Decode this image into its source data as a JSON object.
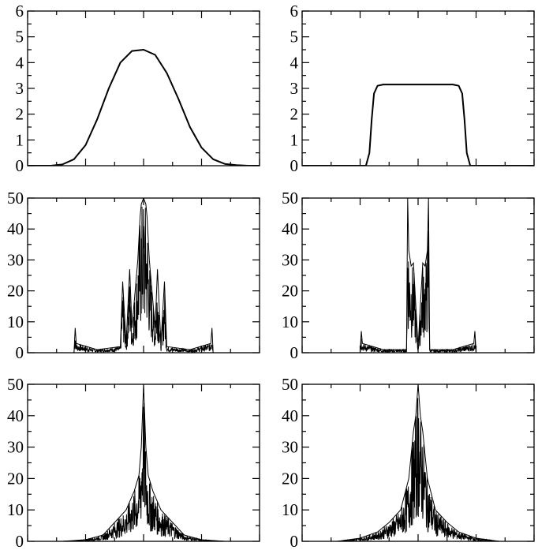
{
  "chart_data": [
    {
      "panel": "top-left",
      "type": "line",
      "ylim": [
        0,
        6
      ],
      "yticks": [
        "0",
        "1",
        "2",
        "3",
        "4",
        "5",
        "6"
      ],
      "xlim": [
        -1,
        1
      ],
      "series": [
        {
          "x": [
            -1,
            -0.9,
            -0.8,
            -0.7,
            -0.6,
            -0.5,
            -0.4,
            -0.3,
            -0.2,
            -0.1,
            0,
            0.1,
            0.2,
            0.3,
            0.4,
            0.5,
            0.6,
            0.7,
            0.8,
            0.9,
            1
          ],
          "values": [
            0,
            0,
            0,
            0.05,
            0.25,
            0.8,
            1.8,
            3.0,
            4.0,
            4.45,
            4.5,
            4.3,
            3.6,
            2.6,
            1.5,
            0.7,
            0.25,
            0.07,
            0.02,
            0,
            0
          ]
        }
      ]
    },
    {
      "panel": "top-right",
      "type": "line",
      "ylim": [
        0,
        6
      ],
      "yticks": [
        "0",
        "1",
        "2",
        "3",
        "4",
        "5",
        "6"
      ],
      "xlim": [
        -1,
        1
      ],
      "series": [
        {
          "x": [
            -1,
            -0.5,
            -0.45,
            -0.42,
            -0.4,
            -0.38,
            -0.35,
            -0.3,
            0,
            0.3,
            0.35,
            0.38,
            0.4,
            0.42,
            0.45,
            0.5,
            1
          ],
          "values": [
            0,
            0,
            0,
            0.5,
            1.8,
            2.8,
            3.1,
            3.15,
            3.15,
            3.15,
            3.1,
            2.8,
            1.8,
            0.5,
            0,
            0,
            0
          ]
        }
      ]
    },
    {
      "panel": "middle-left",
      "type": "line",
      "ylim": [
        0,
        50
      ],
      "yticks": [
        "0",
        "10",
        "20",
        "30",
        "40",
        "50"
      ],
      "xlim": [
        -1,
        1
      ],
      "series": [
        {
          "x": [
            -0.6,
            -0.59,
            -0.58,
            -0.4,
            -0.2,
            -0.18,
            -0.15,
            -0.12,
            -0.1,
            -0.05,
            -0.03,
            -0.02,
            0,
            0.02,
            0.03,
            0.05,
            0.1,
            0.12,
            0.15,
            0.18,
            0.2,
            0.4,
            0.58,
            0.59,
            0.6
          ],
          "values": [
            0,
            8,
            3,
            1,
            2,
            23,
            3,
            27,
            8,
            30,
            44,
            48,
            50,
            48,
            44,
            30,
            8,
            27,
            3,
            23,
            2,
            1,
            3,
            8,
            0
          ]
        }
      ]
    },
    {
      "panel": "middle-right",
      "type": "line",
      "ylim": [
        0,
        50
      ],
      "yticks": [
        "0",
        "10",
        "20",
        "30",
        "40",
        "50"
      ],
      "xlim": [
        -1,
        1
      ],
      "series": [
        {
          "x": [
            -0.5,
            -0.49,
            -0.48,
            -0.3,
            -0.1,
            -0.09,
            -0.08,
            -0.06,
            -0.04,
            0,
            0.04,
            0.06,
            0.08,
            0.09,
            0.1,
            0.3,
            0.48,
            0.49,
            0.5
          ],
          "values": [
            0,
            7,
            3,
            1,
            1,
            50,
            33,
            28,
            29,
            2,
            29,
            28,
            33,
            50,
            1,
            1,
            3,
            7,
            0
          ]
        }
      ]
    },
    {
      "panel": "bottom-left",
      "type": "line",
      "ylim": [
        0,
        50
      ],
      "yticks": [
        "0",
        "10",
        "20",
        "30",
        "40",
        "50"
      ],
      "xlim": [
        -1,
        1
      ],
      "series": [
        {
          "x": [
            -0.7,
            -0.5,
            -0.35,
            -0.25,
            -0.15,
            -0.08,
            -0.04,
            -0.02,
            0,
            0.02,
            0.04,
            0.08,
            0.15,
            0.25,
            0.35,
            0.5,
            0.7
          ],
          "values": [
            0,
            0.5,
            2,
            6,
            10,
            16,
            21,
            30,
            50,
            30,
            21,
            16,
            10,
            6,
            2,
            0.5,
            0
          ]
        }
      ]
    },
    {
      "panel": "bottom-right",
      "type": "line",
      "ylim": [
        0,
        50
      ],
      "yticks": [
        "0",
        "10",
        "20",
        "30",
        "40",
        "50"
      ],
      "xlim": [
        -1,
        1
      ],
      "series": [
        {
          "x": [
            -0.7,
            -0.5,
            -0.35,
            -0.25,
            -0.15,
            -0.08,
            -0.04,
            -0.02,
            0,
            0.02,
            0.04,
            0.08,
            0.15,
            0.25,
            0.35,
            0.5,
            0.7
          ],
          "values": [
            0,
            1,
            3,
            6,
            10,
            20,
            35,
            40,
            50,
            40,
            35,
            20,
            10,
            6,
            3,
            1,
            0
          ]
        }
      ]
    }
  ]
}
